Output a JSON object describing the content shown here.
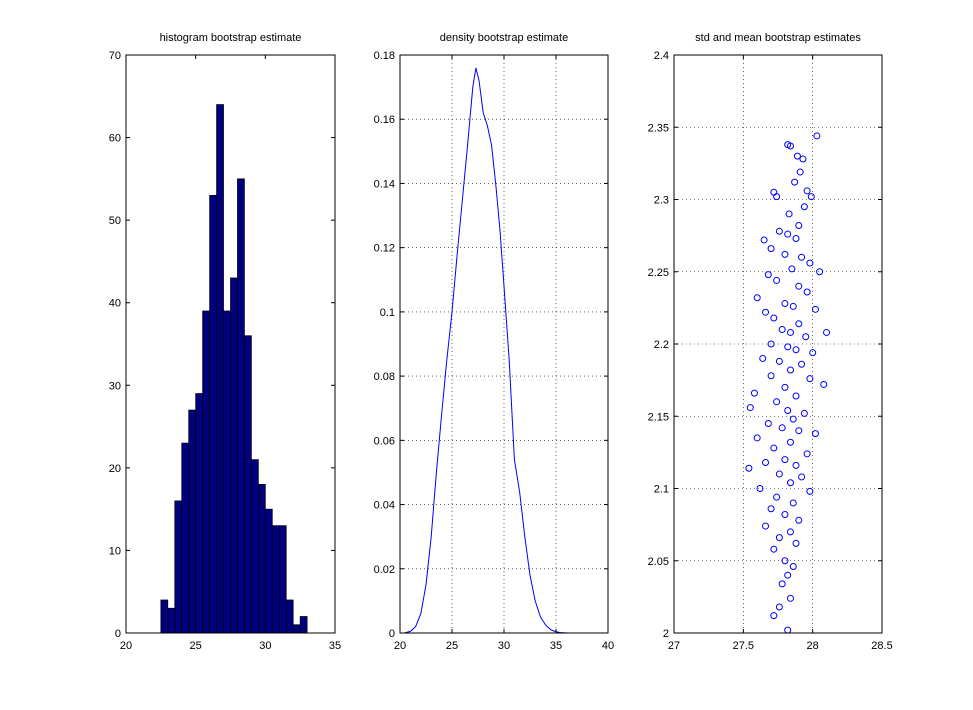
{
  "chart_data": [
    {
      "type": "bar",
      "title": "histogram bootstrap estimate",
      "xlabel": "",
      "ylabel": "",
      "xlim": [
        20,
        35
      ],
      "ylim": [
        0,
        70
      ],
      "xticks": [
        20,
        25,
        30,
        35
      ],
      "yticks": [
        0,
        10,
        20,
        30,
        40,
        50,
        60,
        70
      ],
      "grid": false,
      "bar_color": "#00007f",
      "bin_width": 0.5,
      "bin_centers": [
        22.75,
        23.25,
        23.75,
        24.25,
        24.75,
        25.25,
        25.75,
        26.25,
        26.75,
        27.25,
        27.75,
        28.25,
        28.75,
        29.25,
        29.75,
        30.25,
        30.75,
        31.25,
        31.75,
        32.25,
        32.75,
        33.25,
        33.75,
        34.25
      ],
      "values": [
        4,
        3,
        16,
        23,
        27,
        29,
        39,
        53,
        64,
        39,
        43,
        55,
        36,
        21,
        18,
        15,
        13,
        13,
        4,
        1,
        2,
        0,
        0,
        0
      ]
    },
    {
      "type": "line",
      "title": "density bootstrap estimate",
      "xlabel": "",
      "ylabel": "",
      "xlim": [
        20,
        40
      ],
      "ylim": [
        0,
        0.18
      ],
      "xticks": [
        20,
        25,
        30,
        35,
        40
      ],
      "yticks": [
        0,
        0.02,
        0.04,
        0.06,
        0.08,
        0.1,
        0.12,
        0.14,
        0.16,
        0.18
      ],
      "grid": true,
      "line_color": "#0000ff",
      "x": [
        20.4,
        21.0,
        21.5,
        22.0,
        22.5,
        23.0,
        23.5,
        24.0,
        24.5,
        25.0,
        25.5,
        26.0,
        26.5,
        27.0,
        27.3,
        27.6,
        28.0,
        28.4,
        28.8,
        29.2,
        29.6,
        30.0,
        30.5,
        31.0,
        31.5,
        32.0,
        32.5,
        33.0,
        33.5,
        34.0,
        34.5,
        35.0,
        35.5,
        36.2
      ],
      "y": [
        0.0,
        0.0005,
        0.002,
        0.006,
        0.015,
        0.03,
        0.05,
        0.068,
        0.085,
        0.1,
        0.118,
        0.135,
        0.152,
        0.17,
        0.176,
        0.172,
        0.162,
        0.158,
        0.152,
        0.14,
        0.126,
        0.108,
        0.085,
        0.054,
        0.044,
        0.03,
        0.018,
        0.01,
        0.005,
        0.0025,
        0.001,
        0.0004,
        0.0001,
        0.0
      ]
    },
    {
      "type": "scatter",
      "title": "std and mean bootstrap estimates",
      "xlabel": "",
      "ylabel": "",
      "xlim": [
        27,
        28.5
      ],
      "ylim": [
        2,
        2.4
      ],
      "xticks": [
        27,
        27.5,
        28,
        28.5
      ],
      "yticks": [
        2,
        2.05,
        2.1,
        2.15,
        2.2,
        2.25,
        2.3,
        2.35,
        2.4
      ],
      "grid": true,
      "marker": "circle-open",
      "marker_color": "#0000ff",
      "points": [
        [
          27.82,
          2.338
        ],
        [
          27.84,
          2.337
        ],
        [
          27.89,
          2.33
        ],
        [
          27.93,
          2.328
        ],
        [
          28.03,
          2.344
        ],
        [
          27.91,
          2.319
        ],
        [
          27.87,
          2.312
        ],
        [
          27.96,
          2.306
        ],
        [
          27.72,
          2.305
        ],
        [
          27.74,
          2.302
        ],
        [
          27.99,
          2.302
        ],
        [
          27.94,
          2.295
        ],
        [
          27.83,
          2.29
        ],
        [
          27.9,
          2.282
        ],
        [
          27.76,
          2.278
        ],
        [
          27.82,
          2.276
        ],
        [
          27.88,
          2.273
        ],
        [
          27.65,
          2.272
        ],
        [
          27.7,
          2.266
        ],
        [
          27.8,
          2.262
        ],
        [
          27.92,
          2.26
        ],
        [
          27.98,
          2.256
        ],
        [
          27.85,
          2.252
        ],
        [
          28.05,
          2.25
        ],
        [
          27.68,
          2.248
        ],
        [
          27.74,
          2.244
        ],
        [
          27.9,
          2.24
        ],
        [
          27.96,
          2.236
        ],
        [
          27.6,
          2.232
        ],
        [
          27.8,
          2.228
        ],
        [
          27.86,
          2.226
        ],
        [
          28.02,
          2.224
        ],
        [
          27.66,
          2.222
        ],
        [
          27.72,
          2.218
        ],
        [
          27.9,
          2.214
        ],
        [
          27.78,
          2.21
        ],
        [
          27.84,
          2.208
        ],
        [
          28.1,
          2.208
        ],
        [
          27.95,
          2.205
        ],
        [
          27.7,
          2.2
        ],
        [
          27.82,
          2.198
        ],
        [
          27.88,
          2.196
        ],
        [
          28.0,
          2.194
        ],
        [
          27.64,
          2.19
        ],
        [
          27.76,
          2.188
        ],
        [
          27.92,
          2.186
        ],
        [
          27.84,
          2.182
        ],
        [
          27.7,
          2.178
        ],
        [
          27.98,
          2.176
        ],
        [
          28.08,
          2.172
        ],
        [
          27.8,
          2.17
        ],
        [
          27.58,
          2.166
        ],
        [
          27.88,
          2.164
        ],
        [
          27.74,
          2.16
        ],
        [
          27.55,
          2.156
        ],
        [
          27.82,
          2.154
        ],
        [
          27.94,
          2.152
        ],
        [
          27.86,
          2.148
        ],
        [
          27.68,
          2.145
        ],
        [
          27.78,
          2.142
        ],
        [
          27.9,
          2.14
        ],
        [
          28.02,
          2.138
        ],
        [
          27.6,
          2.135
        ],
        [
          27.84,
          2.132
        ],
        [
          27.72,
          2.128
        ],
        [
          27.96,
          2.124
        ],
        [
          27.8,
          2.12
        ],
        [
          27.66,
          2.118
        ],
        [
          27.88,
          2.116
        ],
        [
          27.54,
          2.114
        ],
        [
          27.76,
          2.11
        ],
        [
          27.92,
          2.108
        ],
        [
          27.84,
          2.104
        ],
        [
          27.62,
          2.1
        ],
        [
          27.98,
          2.098
        ],
        [
          27.74,
          2.094
        ],
        [
          27.86,
          2.09
        ],
        [
          27.7,
          2.086
        ],
        [
          27.8,
          2.082
        ],
        [
          27.9,
          2.078
        ],
        [
          27.66,
          2.074
        ],
        [
          27.84,
          2.07
        ],
        [
          27.76,
          2.066
        ],
        [
          27.88,
          2.062
        ],
        [
          27.72,
          2.058
        ],
        [
          27.8,
          2.05
        ],
        [
          27.86,
          2.046
        ],
        [
          27.82,
          2.04
        ],
        [
          27.78,
          2.034
        ],
        [
          27.84,
          2.024
        ],
        [
          27.76,
          2.018
        ],
        [
          27.72,
          2.012
        ],
        [
          27.82,
          2.002
        ]
      ]
    }
  ]
}
